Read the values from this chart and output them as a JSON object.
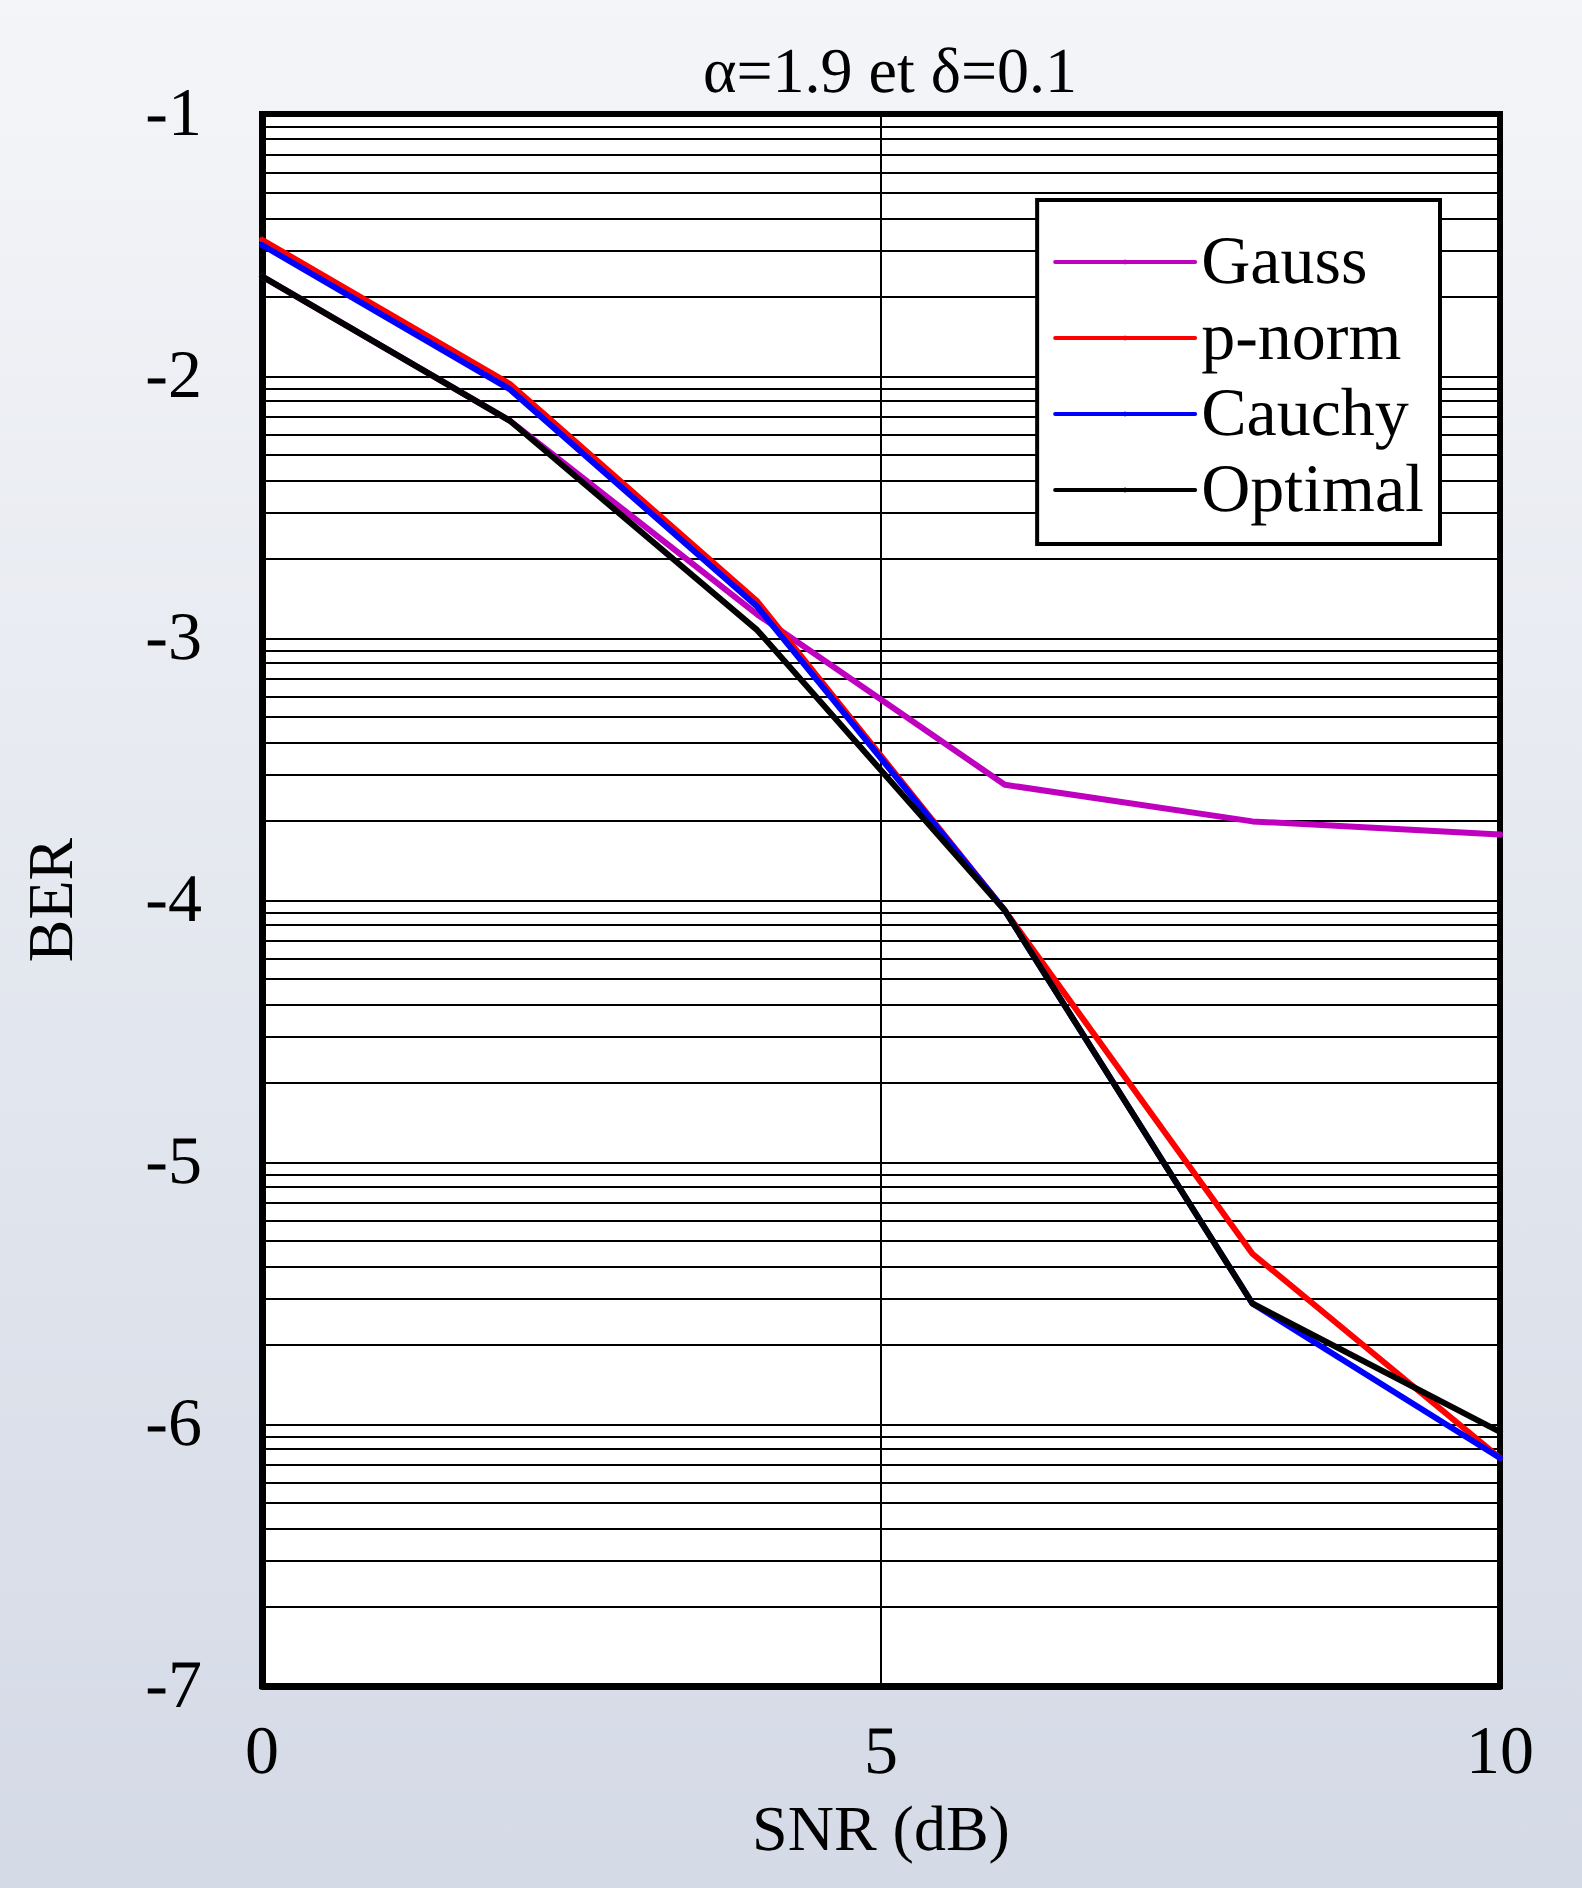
{
  "chart_data": {
    "type": "line",
    "title": "α=1.9 et δ=0.1",
    "xlabel": "SNR (dB)",
    "ylabel": "BER",
    "x": [
      0,
      2,
      4,
      6,
      8,
      10
    ],
    "series": [
      {
        "name": "Gauss",
        "color": "#bf00bf",
        "values": [
          -1.62,
          -2.17,
          -2.91,
          -3.56,
          -3.7,
          -3.75
        ]
      },
      {
        "name": "p-norm",
        "color": "#ff0000",
        "values": [
          -1.48,
          -2.03,
          -2.86,
          -4.04,
          -5.35,
          -6.13
        ]
      },
      {
        "name": "Cauchy",
        "color": "#0000ff",
        "values": [
          -1.5,
          -2.05,
          -2.88,
          -4.04,
          -5.54,
          -6.13
        ]
      },
      {
        "name": "Optimal",
        "color": "#000000",
        "values": [
          -1.62,
          -2.17,
          -2.97,
          -4.04,
          -5.54,
          -6.03
        ]
      }
    ],
    "xlim": [
      0,
      10
    ],
    "xticks": [
      0,
      5,
      10
    ],
    "ylim": [
      -7,
      -1
    ],
    "yticks": [
      -7,
      -6,
      -5,
      -4,
      -3,
      -2,
      -1
    ],
    "grid": true,
    "legend": "top right",
    "marker": "none",
    "line_style": "solid"
  }
}
